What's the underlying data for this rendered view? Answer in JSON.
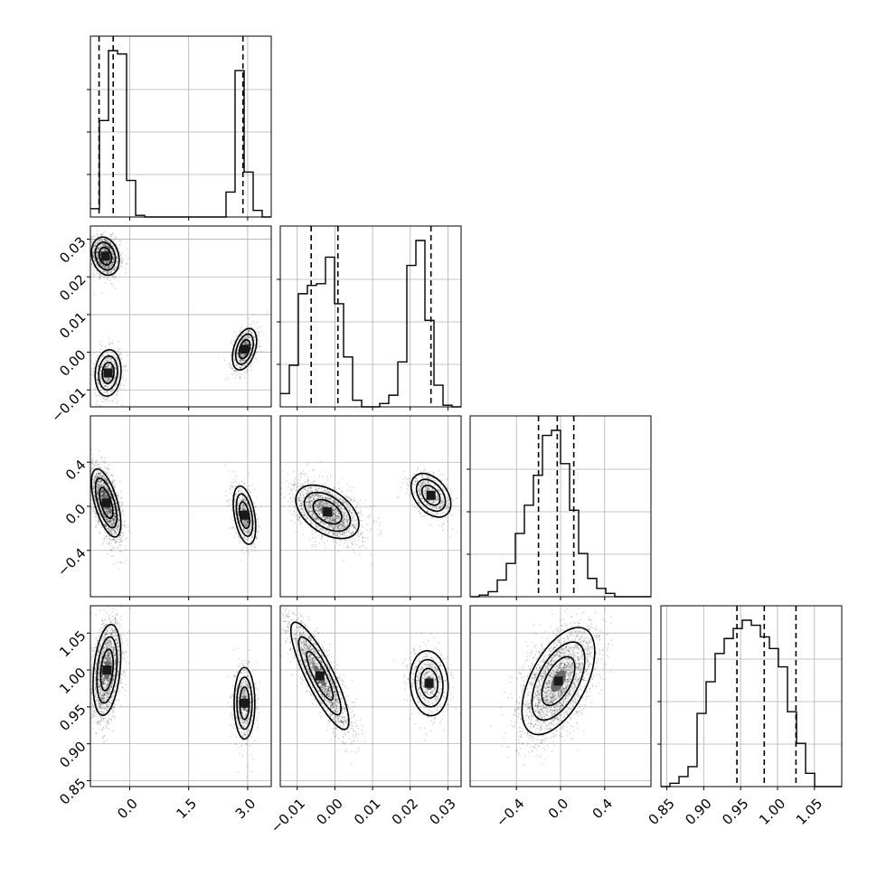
{
  "chart_data": {
    "type": "corner",
    "grid": true,
    "n_params": 4,
    "ranges": [
      [
        -1.0,
        3.6
      ],
      [
        -0.0145,
        0.0335
      ],
      [
        -0.82,
        0.82
      ],
      [
        0.842,
        1.087
      ]
    ],
    "ticks": [
      [
        0.0,
        1.5,
        3.0
      ],
      [
        -0.01,
        0.0,
        0.01,
        0.02,
        0.03
      ],
      [
        -0.4,
        0.0,
        0.4
      ],
      [
        0.85,
        0.9,
        0.95,
        1.0,
        1.05
      ]
    ],
    "tick_labels": [
      [
        "0.0",
        "1.5",
        "3.0"
      ],
      [
        "−0.01",
        "0.00",
        "0.01",
        "0.02",
        "0.03"
      ],
      [
        "−0.4",
        "0.0",
        "0.4"
      ],
      [
        "0.85",
        "0.90",
        "0.95",
        "1.00",
        "1.05"
      ]
    ],
    "histograms": [
      {
        "param": 0,
        "edges_start": -1.0,
        "bin_width": 0.23,
        "counts": [
          0.05,
          0.58,
          1.0,
          0.98,
          0.22,
          0.01,
          0.0,
          0.0,
          0.0,
          0.0,
          0.0,
          0.0,
          0.0,
          0.0,
          0.0,
          0.15,
          0.88,
          0.27,
          0.04,
          0.0
        ],
        "quantiles": [
          -0.78,
          -0.42,
          2.88
        ]
      },
      {
        "param": 1,
        "edges_start": -0.0145,
        "bin_width": 0.0024,
        "counts": [
          0.08,
          0.25,
          0.68,
          0.73,
          0.74,
          0.9,
          0.62,
          0.3,
          0.04,
          0.0,
          0.0,
          0.02,
          0.07,
          0.27,
          0.85,
          1.0,
          0.52,
          0.13,
          0.01,
          0.0
        ],
        "quantiles": [
          -0.0063,
          0.0008,
          0.0255
        ]
      },
      {
        "param": 2,
        "edges_start": -0.82,
        "bin_width": 0.082,
        "counts": [
          0.0,
          0.01,
          0.03,
          0.1,
          0.2,
          0.38,
          0.55,
          0.73,
          0.97,
          1.0,
          0.8,
          0.52,
          0.26,
          0.11,
          0.05,
          0.02,
          0.0,
          0.0,
          0.0,
          0.0
        ],
        "quantiles": [
          -0.2,
          -0.03,
          0.12
        ]
      },
      {
        "param": 3,
        "edges_start": 0.842,
        "bin_width": 0.01225,
        "counts": [
          0.0,
          0.02,
          0.06,
          0.12,
          0.44,
          0.63,
          0.8,
          0.89,
          0.95,
          1.0,
          0.97,
          0.9,
          0.83,
          0.72,
          0.45,
          0.26,
          0.08,
          0.0,
          0.0,
          0.0
        ],
        "quantiles": [
          0.945,
          0.982,
          1.025
        ]
      }
    ],
    "joint_modes": {
      "1-0": [
        {
          "x": -0.62,
          "y": 0.0255,
          "sx": 0.16,
          "sy": 0.0023,
          "rho": -0.2,
          "w": 0.5
        },
        {
          "x": -0.55,
          "y": -0.0055,
          "sx": 0.15,
          "sy": 0.0028,
          "rho": 0.1,
          "w": 0.25
        },
        {
          "x": 2.92,
          "y": 0.0008,
          "sx": 0.14,
          "sy": 0.0025,
          "rho": 0.4,
          "w": 0.25
        }
      ],
      "2-0": [
        {
          "x": -0.6,
          "y": 0.03,
          "sx": 0.17,
          "sy": 0.14,
          "rho": -0.6,
          "w": 0.75
        },
        {
          "x": 2.92,
          "y": -0.08,
          "sx": 0.13,
          "sy": 0.12,
          "rho": -0.4,
          "w": 0.25
        }
      ],
      "2-1": [
        {
          "x": -0.002,
          "y": -0.05,
          "sx": 0.0038,
          "sy": 0.11,
          "rho": -0.45,
          "w": 0.75
        },
        {
          "x": 0.0255,
          "y": 0.1,
          "sx": 0.0024,
          "sy": 0.09,
          "rho": -0.4,
          "w": 0.25
        }
      ],
      "3-0": [
        {
          "x": -0.58,
          "y": 1.0,
          "sx": 0.16,
          "sy": 0.028,
          "rho": 0.3,
          "w": 0.75
        },
        {
          "x": 2.92,
          "y": 0.955,
          "sx": 0.12,
          "sy": 0.022,
          "rho": 0.0,
          "w": 0.25
        }
      ],
      "3-1": [
        {
          "x": -0.004,
          "y": 0.992,
          "sx": 0.0035,
          "sy": 0.033,
          "rho": -0.85,
          "w": 0.75
        },
        {
          "x": 0.025,
          "y": 0.982,
          "sx": 0.0023,
          "sy": 0.02,
          "rho": -0.1,
          "w": 0.25
        }
      ],
      "3-2": [
        {
          "x": -0.02,
          "y": 0.985,
          "sx": 0.15,
          "sy": 0.033,
          "rho": 0.55,
          "w": 1.0
        }
      ]
    }
  }
}
